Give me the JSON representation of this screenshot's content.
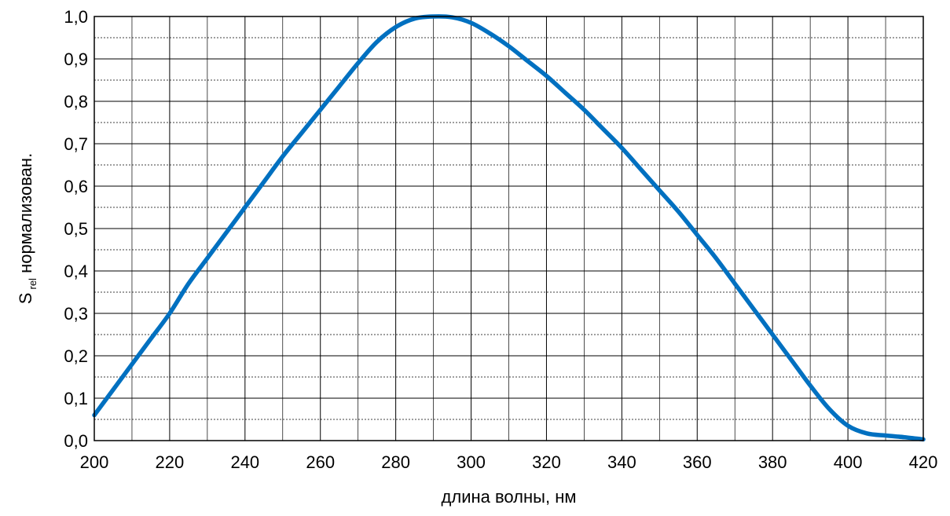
{
  "chart_data": {
    "type": "line",
    "title": "",
    "xlabel": "длина волны, нм",
    "ylabel_main": "S",
    "ylabel_sub": "rel",
    "ylabel_rest": " нормализован.",
    "xlim": [
      200,
      420
    ],
    "ylim": [
      0,
      1
    ],
    "x_major_step": 20,
    "x_minor_step": 10,
    "y_major_step": 0.1,
    "y_minor_step": 0.05,
    "grid": true,
    "x_tick_labels": [
      "200",
      "220",
      "240",
      "260",
      "280",
      "300",
      "320",
      "340",
      "360",
      "380",
      "400",
      "420"
    ],
    "y_tick_labels": [
      "0,0",
      "0,1",
      "0,2",
      "0,3",
      "0,4",
      "0,5",
      "0,6",
      "0,7",
      "0,8",
      "0,9",
      "1,0"
    ],
    "line_color": "#0070C0",
    "series": [
      {
        "x": [
          200,
          205,
          210,
          215,
          220,
          225,
          230,
          235,
          240,
          245,
          250,
          255,
          260,
          265,
          270,
          275,
          280,
          285,
          290,
          295,
          300,
          305,
          310,
          315,
          320,
          325,
          330,
          335,
          340,
          345,
          350,
          355,
          360,
          365,
          370,
          375,
          380,
          385,
          390,
          395,
          400,
          405,
          410,
          415,
          420
        ],
        "y": [
          0.06,
          0.12,
          0.18,
          0.24,
          0.3,
          0.37,
          0.43,
          0.49,
          0.55,
          0.61,
          0.67,
          0.725,
          0.78,
          0.835,
          0.89,
          0.94,
          0.975,
          0.995,
          1.0,
          0.998,
          0.985,
          0.96,
          0.93,
          0.895,
          0.86,
          0.82,
          0.78,
          0.735,
          0.69,
          0.64,
          0.59,
          0.54,
          0.485,
          0.43,
          0.37,
          0.31,
          0.25,
          0.19,
          0.13,
          0.075,
          0.035,
          0.017,
          0.012,
          0.008,
          0.003
        ]
      }
    ]
  }
}
